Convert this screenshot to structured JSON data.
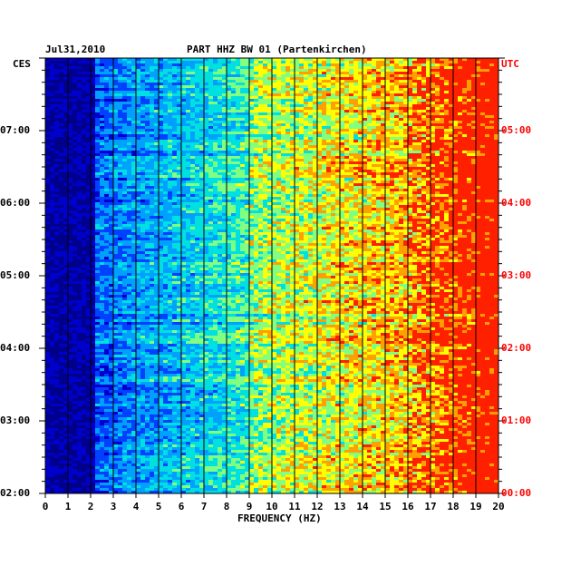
{
  "header": {
    "date": "Jul31,2010",
    "station": "PART HHZ BW 01 (Partenkirchen)",
    "left_zone": "CES",
    "right_zone": "UTC"
  },
  "colors": {
    "local_time": "#000000",
    "utc_time": "#ff0000",
    "gridline": "#000000",
    "colormap": [
      "#00008b",
      "#0000cd",
      "#0040ff",
      "#00a0ff",
      "#00e0e0",
      "#80ff80",
      "#ffff00",
      "#ffa000",
      "#ff2000"
    ]
  },
  "chart_data": {
    "type": "heatmap",
    "title": "PART HHZ BW 01 (Partenkirchen)",
    "xlabel": "FREQUENCY (HZ)",
    "ylabel": "",
    "xlim": [
      0,
      20
    ],
    "x_ticks": [
      "0",
      "1",
      "2",
      "3",
      "4",
      "5",
      "6",
      "7",
      "8",
      "9",
      "10",
      "11",
      "12",
      "13",
      "14",
      "15",
      "16",
      "17",
      "18",
      "19",
      "20"
    ],
    "y_range_hours_local": [
      2,
      8
    ],
    "left_tick_labels": [
      "02:00",
      "03:00",
      "04:00",
      "05:00",
      "06:00",
      "07:00"
    ],
    "right_tick_labels": [
      "00:00",
      "01:00",
      "02:00",
      "03:00",
      "04:00",
      "05:00"
    ],
    "grid": "vertical lines at each integer frequency",
    "intensity_trend": "low (blue) at low frequencies, rising to green/yellow/red above 17 Hz"
  }
}
